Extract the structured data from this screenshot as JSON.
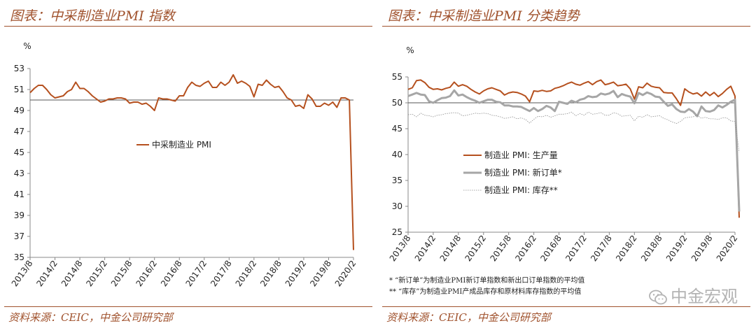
{
  "left": {
    "title": "图表：中采制造业PMI 指数",
    "source": "资料来源：CEIC，中金公司研究部"
  },
  "right": {
    "title": "图表：中采制造业PMI 分类趋势",
    "source": "资料来源：CEIC，中金公司研究部",
    "notes": [
      "*    “新订单”为制造业PMI新订单指数和新出口订单指数的平均值",
      "**  “库存”为制造业PMI产成品库存和原材料库存指数的平均值"
    ],
    "watermark": "中金宏观"
  },
  "colors": {
    "brand": "#a0522d",
    "pmi": "#b5501e",
    "new_orders": "#a6a6a6",
    "inventory": "#8c8c8c"
  },
  "chart_data": [
    {
      "type": "line",
      "title": "",
      "ylabel": "%",
      "xlabel": "",
      "ylim": [
        35,
        53
      ],
      "yticks": [
        35,
        37,
        39,
        41,
        43,
        45,
        47,
        49,
        51,
        53
      ],
      "reference_line": 50,
      "x_tick_labels": [
        "2013/8",
        "2014/2",
        "2014/8",
        "2015/2",
        "2015/8",
        "2016/2",
        "2016/8",
        "2017/2",
        "2017/8",
        "2018/2",
        "2018/8",
        "2019/2",
        "2019/8",
        "2020/2"
      ],
      "x_start": "2013/8",
      "x_end": "2020/2",
      "legend_position": "center",
      "grid": false,
      "series": [
        {
          "name": "中采制造业 PMI",
          "style": "solid",
          "values": [
            50.7,
            51.1,
            51.4,
            51.4,
            51.0,
            50.5,
            50.2,
            50.3,
            50.4,
            50.8,
            51.0,
            51.7,
            51.1,
            51.1,
            50.8,
            50.4,
            50.1,
            49.8,
            49.9,
            50.1,
            50.1,
            50.2,
            50.2,
            50.1,
            49.7,
            49.8,
            49.8,
            49.6,
            49.7,
            49.4,
            49.0,
            50.2,
            50.1,
            50.1,
            50.0,
            49.9,
            50.4,
            50.4,
            51.2,
            51.7,
            51.4,
            51.3,
            51.6,
            51.8,
            51.2,
            51.2,
            51.7,
            51.4,
            51.7,
            52.4,
            51.6,
            51.8,
            51.6,
            51.3,
            50.3,
            51.5,
            51.4,
            51.9,
            51.5,
            51.2,
            51.3,
            50.8,
            50.2,
            50.0,
            49.4,
            49.5,
            49.2,
            50.5,
            50.1,
            49.4,
            49.4,
            49.7,
            49.5,
            49.8,
            49.3,
            50.2,
            50.2,
            50.0,
            35.7
          ]
        }
      ]
    },
    {
      "type": "line",
      "title": "",
      "ylabel": "%",
      "xlabel": "",
      "ylim": [
        25,
        55
      ],
      "yticks": [
        25,
        30,
        35,
        40,
        45,
        50,
        55
      ],
      "reference_line": 50,
      "x_tick_labels": [
        "2013/8",
        "2014/2",
        "2014/8",
        "2015/2",
        "2015/8",
        "2016/2",
        "2016/8",
        "2017/2",
        "2017/8",
        "2018/2",
        "2018/8",
        "2019/2",
        "2019/8",
        "2020/2"
      ],
      "x_start": "2013/8",
      "x_end": "2020/2",
      "legend_position": "center-left",
      "grid": false,
      "series": [
        {
          "name": "制造业 PMI: 生产量",
          "style": "solid",
          "values": [
            52.6,
            52.9,
            54.3,
            54.4,
            53.9,
            53.0,
            52.6,
            52.7,
            52.5,
            52.8,
            53.0,
            54.0,
            53.2,
            53.5,
            53.2,
            52.6,
            52.1,
            51.7,
            52.3,
            52.7,
            52.9,
            52.6,
            52.3,
            51.5,
            51.9,
            52.1,
            52.0,
            51.7,
            51.3,
            50.2,
            52.3,
            52.2,
            52.4,
            52.2,
            52.3,
            52.8,
            53.0,
            53.3,
            53.7,
            54.0,
            53.6,
            53.4,
            53.8,
            54.1,
            53.5,
            54.1,
            54.4,
            53.5,
            53.7,
            54.0,
            53.3,
            53.4,
            53.6,
            52.7,
            50.7,
            53.1,
            52.9,
            53.8,
            53.2,
            53.0,
            52.9,
            52.0,
            51.9,
            51.9,
            50.8,
            49.5,
            52.7,
            52.1,
            51.7,
            51.9,
            51.3,
            52.1,
            51.4,
            52.0,
            51.2,
            51.8,
            52.6,
            53.2,
            51.3,
            27.8
          ]
        },
        {
          "name": "制造业 PMI: 新订单*",
          "style": "solid",
          "values": [
            51.3,
            51.6,
            51.9,
            51.6,
            51.5,
            50.3,
            50.0,
            50.5,
            50.9,
            51.0,
            51.3,
            52.4,
            51.4,
            51.6,
            51.1,
            50.7,
            50.4,
            50.0,
            50.3,
            50.6,
            50.6,
            50.2,
            50.1,
            49.5,
            49.5,
            49.3,
            49.3,
            49.2,
            48.8,
            48.4,
            49.0,
            48.4,
            48.8,
            49.4,
            49.1,
            48.4,
            50.2,
            50.0,
            49.8,
            50.4,
            50.1,
            50.6,
            50.8,
            51.3,
            51.1,
            51.2,
            51.8,
            51.6,
            51.8,
            52.3,
            51.1,
            51.7,
            51.4,
            51.2,
            49.9,
            51.9,
            51.5,
            52.0,
            51.7,
            51.2,
            51.1,
            50.2,
            49.4,
            49.7,
            48.8,
            48.3,
            48.2,
            48.8,
            48.3,
            47.4,
            49.3,
            48.4,
            48.3,
            48.6,
            49.5,
            49.1,
            49.6,
            50.2,
            50.6,
            29.0
          ]
        },
        {
          "name": "制造业 PMI: 库存**",
          "style": "dotted",
          "values": [
            47.7,
            47.8,
            47.3,
            48.0,
            47.6,
            47.5,
            47.3,
            47.6,
            47.7,
            47.9,
            48.0,
            48.1,
            48.0,
            47.5,
            47.6,
            47.8,
            48.0,
            47.9,
            48.0,
            47.9,
            47.6,
            47.5,
            47.3,
            47.0,
            47.1,
            47.3,
            46.9,
            47.1,
            46.8,
            46.1,
            46.8,
            47.4,
            47.3,
            47.6,
            47.2,
            47.5,
            47.8,
            47.8,
            47.9,
            48.2,
            47.5,
            47.9,
            47.6,
            48.2,
            47.8,
            47.9,
            48.1,
            47.6,
            47.6,
            48.1,
            47.9,
            47.4,
            47.5,
            47.6,
            46.5,
            47.4,
            47.2,
            47.7,
            47.3,
            47.4,
            47.5,
            47.0,
            46.7,
            46.3,
            46.0,
            46.4,
            47.1,
            47.2,
            47.3,
            47.6,
            47.0,
            47.2,
            46.9,
            46.9,
            46.8,
            47.1,
            47.1,
            46.5,
            46.4,
            40.5
          ]
        }
      ]
    }
  ]
}
